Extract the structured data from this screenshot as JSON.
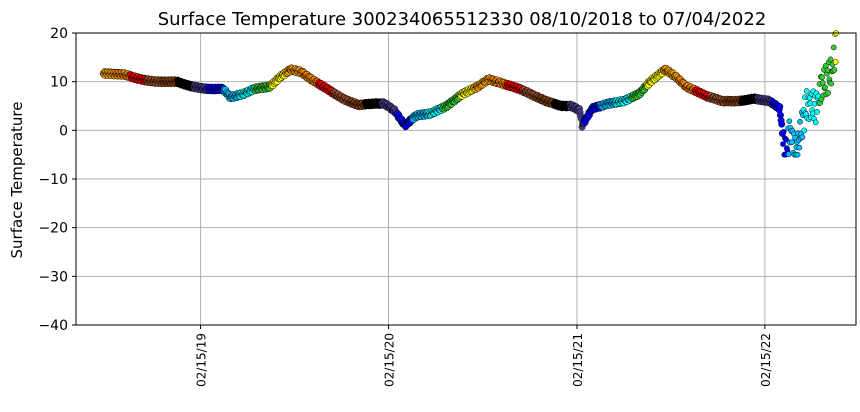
{
  "chart_data": {
    "type": "scatter",
    "title": "Surface Temperature 300234065512330  08/10/2018 to 07/04/2022",
    "xlabel": "",
    "ylabel": "Surface Temperature",
    "ylim": [
      -40,
      20
    ],
    "yticks": [
      20,
      10,
      0,
      -10,
      -20,
      -30,
      -40
    ],
    "ytick_labels": [
      "20",
      "10",
      "0",
      "−10",
      "−20",
      "−30",
      "−40"
    ],
    "xticks": [
      "2019-02-15",
      "2020-02-15",
      "2021-02-15",
      "2022-02-15"
    ],
    "xtick_labels": [
      "02/15/19",
      "02/15/20",
      "02/15/21",
      "02/15/22"
    ],
    "xlim": [
      "2018-06-18",
      "2022-08-11"
    ],
    "grid": true,
    "color_by": "month",
    "month_colors": [
      "#000000",
      "#483d8b",
      "#0000ff",
      "#00bfff",
      "#00ffff",
      "#32cd32",
      "#ffff00",
      "#ffa500",
      "#ff8c00",
      "#ff0000",
      "#a0522d",
      "#8b4513"
    ],
    "series_points_day_temp": [
      [
        0,
        11.7
      ],
      [
        40,
        11.5
      ],
      [
        71,
        10.5
      ],
      [
        101,
        10
      ],
      [
        142,
        10
      ],
      [
        172,
        9
      ],
      [
        202,
        8.5
      ],
      [
        233,
        8.5
      ],
      [
        247,
        6.8
      ],
      [
        273,
        7.5
      ],
      [
        293,
        8.5
      ],
      [
        324,
        9
      ],
      [
        344,
        11
      ],
      [
        364,
        12.5
      ],
      [
        384,
        12
      ],
      [
        404,
        10.5
      ],
      [
        435,
        8.5
      ],
      [
        465,
        6.5
      ],
      [
        495,
        5.2
      ],
      [
        526,
        5.5
      ],
      [
        546,
        5.5
      ],
      [
        566,
        4
      ],
      [
        586,
        1
      ],
      [
        607,
        3
      ],
      [
        637,
        3.5
      ],
      [
        667,
        5
      ],
      [
        698,
        7.5
      ],
      [
        728,
        9
      ],
      [
        748,
        10.5
      ],
      [
        779,
        9.5
      ],
      [
        809,
        8.5
      ],
      [
        839,
        7
      ],
      [
        860,
        6
      ],
      [
        890,
        5
      ],
      [
        910,
        5
      ],
      [
        926,
        4
      ],
      [
        930,
        1
      ],
      [
        950,
        4.5
      ],
      [
        981,
        5.5
      ],
      [
        1011,
        6
      ],
      [
        1041,
        7.5
      ],
      [
        1062,
        10
      ],
      [
        1092,
        12.5
      ],
      [
        1112,
        11
      ],
      [
        1132,
        9
      ],
      [
        1173,
        7
      ],
      [
        1203,
        6
      ],
      [
        1234,
        6
      ],
      [
        1264,
        6.5
      ],
      [
        1294,
        6
      ],
      [
        1314,
        4.5
      ],
      [
        1324,
        -5
      ],
      [
        1335,
        0
      ],
      [
        1345,
        -5
      ],
      [
        1365,
        5
      ],
      [
        1385,
        5
      ],
      [
        1395,
        9
      ],
      [
        1415,
        12
      ],
      [
        1425,
        19
      ]
    ]
  }
}
